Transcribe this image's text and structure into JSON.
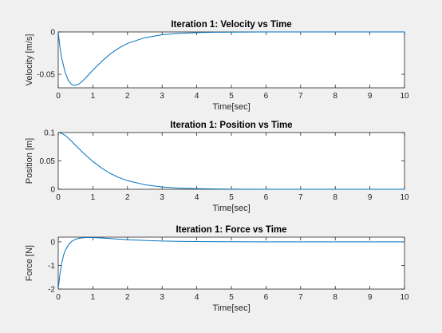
{
  "chart_data": [
    {
      "type": "line",
      "title": "Iteration 1: Velocity vs Time",
      "xlabel": "Time[sec]",
      "ylabel": "Velocity [m/s]",
      "xlim": [
        0,
        10
      ],
      "ylim": [
        -0.066,
        0
      ],
      "xticks": [
        0,
        1,
        2,
        3,
        4,
        5,
        6,
        7,
        8,
        9,
        10
      ],
      "xtick_labels": [
        "0",
        "1",
        "2",
        "3",
        "4",
        "5",
        "6",
        "7",
        "8",
        "9",
        "10"
      ],
      "yticks": [
        -0.05,
        0
      ],
      "ytick_labels": [
        "-0.05",
        "0"
      ],
      "grid": false,
      "series": [
        {
          "color": "#0072bd",
          "x": [
            0,
            0.05,
            0.1,
            0.2,
            0.3,
            0.4,
            0.5,
            0.6,
            0.7,
            0.8,
            1,
            1.25,
            1.5,
            1.75,
            2,
            2.5,
            3,
            3.5,
            4,
            4.5,
            5,
            6,
            7,
            8,
            9,
            10
          ],
          "y": [
            0,
            -0.018,
            -0.031,
            -0.048,
            -0.058,
            -0.0625,
            -0.063,
            -0.0615,
            -0.058,
            -0.054,
            -0.045,
            -0.035,
            -0.026,
            -0.019,
            -0.0135,
            -0.0068,
            -0.0033,
            -0.0016,
            -0.0008,
            -0.0004,
            -0.0002,
            -5e-05,
            0,
            0,
            0,
            0
          ]
        }
      ]
    },
    {
      "type": "line",
      "title": "Iteration 1: Position vs Time",
      "xlabel": "Time[sec]",
      "ylabel": "Position [m]",
      "xlim": [
        0,
        10
      ],
      "ylim": [
        0,
        0.1
      ],
      "xticks": [
        0,
        1,
        2,
        3,
        4,
        5,
        6,
        7,
        8,
        9,
        10
      ],
      "xtick_labels": [
        "0",
        "1",
        "2",
        "3",
        "4",
        "5",
        "6",
        "7",
        "8",
        "9",
        "10"
      ],
      "yticks": [
        0,
        0.05,
        0.1
      ],
      "ytick_labels": [
        "0",
        "0.05",
        "0.1"
      ],
      "grid": false,
      "series": [
        {
          "color": "#0072bd",
          "x": [
            0,
            0.1,
            0.2,
            0.3,
            0.4,
            0.5,
            0.75,
            1,
            1.25,
            1.5,
            1.75,
            2,
            2.5,
            3,
            3.5,
            4,
            4.5,
            5,
            6,
            7,
            8,
            9,
            10
          ],
          "y": [
            0.1,
            0.0985,
            0.095,
            0.0898,
            0.0838,
            0.0775,
            0.0625,
            0.049,
            0.0375,
            0.028,
            0.0207,
            0.0152,
            0.008,
            0.0041,
            0.002,
            0.001,
            0.0005,
            0.0002,
            5e-05,
            0,
            0,
            0,
            0
          ]
        }
      ]
    },
    {
      "type": "line",
      "title": "Iteration 1: Force vs Time",
      "xlabel": "Time[sec]",
      "ylabel": "Force [N]",
      "xlim": [
        0,
        10
      ],
      "ylim": [
        -2,
        0.2
      ],
      "xticks": [
        0,
        1,
        2,
        3,
        4,
        5,
        6,
        7,
        8,
        9,
        10
      ],
      "xtick_labels": [
        "0",
        "1",
        "2",
        "3",
        "4",
        "5",
        "6",
        "7",
        "8",
        "9",
        "10"
      ],
      "yticks": [
        -2,
        -1,
        0
      ],
      "ytick_labels": [
        "-2",
        "-1",
        "0"
      ],
      "grid": false,
      "series": [
        {
          "color": "#0072bd",
          "x": [
            0,
            0.05,
            0.1,
            0.15,
            0.2,
            0.3,
            0.4,
            0.5,
            0.6,
            0.8,
            1,
            1.25,
            1.5,
            2,
            2.5,
            3,
            3.5,
            4,
            5,
            6,
            7,
            8,
            9,
            10
          ],
          "y": [
            -2,
            -1.35,
            -0.9,
            -0.58,
            -0.37,
            -0.11,
            0.03,
            0.11,
            0.155,
            0.185,
            0.185,
            0.165,
            0.14,
            0.095,
            0.06,
            0.037,
            0.022,
            0.013,
            0.004,
            0.001,
            0,
            0,
            0,
            0
          ]
        }
      ]
    }
  ]
}
